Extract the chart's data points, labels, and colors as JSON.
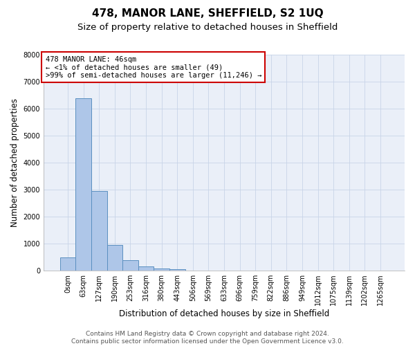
{
  "title": "478, MANOR LANE, SHEFFIELD, S2 1UQ",
  "subtitle": "Size of property relative to detached houses in Sheffield",
  "xlabel": "Distribution of detached houses by size in Sheffield",
  "ylabel": "Number of detached properties",
  "footer_line1": "Contains HM Land Registry data © Crown copyright and database right 2024.",
  "footer_line2": "Contains public sector information licensed under the Open Government Licence v3.0.",
  "bar_labels": [
    "0sqm",
    "63sqm",
    "127sqm",
    "190sqm",
    "253sqm",
    "316sqm",
    "380sqm",
    "443sqm",
    "506sqm",
    "569sqm",
    "633sqm",
    "696sqm",
    "759sqm",
    "822sqm",
    "886sqm",
    "949sqm",
    "1012sqm",
    "1075sqm",
    "1139sqm",
    "1202sqm",
    "1265sqm"
  ],
  "bar_values": [
    490,
    6380,
    2940,
    960,
    390,
    155,
    90,
    50,
    0,
    0,
    0,
    0,
    0,
    0,
    0,
    0,
    0,
    0,
    0,
    0,
    0
  ],
  "bar_color": "#aec6e8",
  "bar_edge_color": "#5a8fc0",
  "annotation_text": "478 MANOR LANE: 46sqm\n← <1% of detached houses are smaller (49)\n>99% of semi-detached houses are larger (11,246) →",
  "annotation_box_color": "white",
  "annotation_box_edge_color": "#cc0000",
  "ylim": [
    0,
    8000
  ],
  "yticks": [
    0,
    1000,
    2000,
    3000,
    4000,
    5000,
    6000,
    7000,
    8000
  ],
  "grid_color": "#c8d4e8",
  "bg_color": "#eaeff8",
  "title_fontsize": 11,
  "subtitle_fontsize": 9.5,
  "axis_label_fontsize": 8.5,
  "tick_fontsize": 7,
  "annotation_fontsize": 7.5,
  "footer_fontsize": 6.5
}
